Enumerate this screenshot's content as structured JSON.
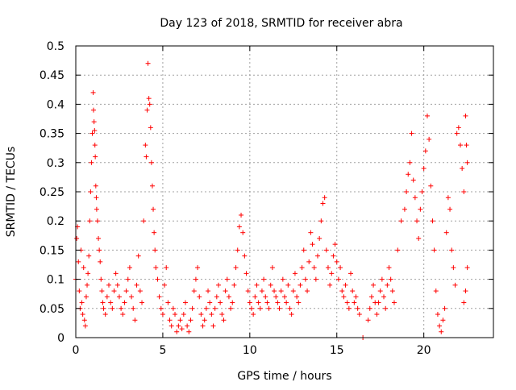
{
  "chart_data": {
    "type": "scatter",
    "title": "Day 123 of 2018, SRMTID for receiver abra",
    "xlabel": "GPS time / hours",
    "ylabel": "SRMTID / TECUs",
    "xlim": [
      0,
      24
    ],
    "ylim": [
      0,
      0.5
    ],
    "xticks": [
      0,
      5,
      10,
      15,
      20
    ],
    "yticks": [
      0,
      0.05,
      0.1,
      0.15,
      0.2,
      0.25,
      0.3,
      0.35,
      0.4,
      0.45,
      0.5
    ],
    "xtick_labels": [
      "0",
      "5",
      "10",
      "15",
      "20"
    ],
    "ytick_labels": [
      "0",
      "0.05",
      "0.1",
      "0.15",
      "0.2",
      "0.25",
      "0.3",
      "0.35",
      "0.4",
      "0.45",
      "0.5"
    ],
    "grid": true,
    "marker": "plus",
    "color": "#ff0000",
    "points": [
      [
        0.0,
        0.1
      ],
      [
        0.05,
        0.17
      ],
      [
        0.1,
        0.19
      ],
      [
        0.15,
        0.13
      ],
      [
        0.2,
        0.08
      ],
      [
        0.25,
        0.05
      ],
      [
        0.3,
        0.15
      ],
      [
        0.35,
        0.06
      ],
      [
        0.4,
        0.04
      ],
      [
        0.45,
        0.12
      ],
      [
        0.5,
        0.03
      ],
      [
        0.55,
        0.02
      ],
      [
        0.6,
        0.07
      ],
      [
        0.65,
        0.09
      ],
      [
        0.7,
        0.11
      ],
      [
        0.75,
        0.14
      ],
      [
        0.8,
        0.2
      ],
      [
        0.85,
        0.25
      ],
      [
        0.9,
        0.3
      ],
      [
        0.95,
        0.35
      ],
      [
        1.0,
        0.42
      ],
      [
        1.02,
        0.39
      ],
      [
        1.05,
        0.37
      ],
      [
        1.08,
        0.355
      ],
      [
        1.1,
        0.33
      ],
      [
        1.12,
        0.31
      ],
      [
        1.15,
        0.26
      ],
      [
        1.18,
        0.24
      ],
      [
        1.2,
        0.22
      ],
      [
        1.25,
        0.2
      ],
      [
        1.3,
        0.17
      ],
      [
        1.35,
        0.15
      ],
      [
        1.4,
        0.13
      ],
      [
        1.45,
        0.1
      ],
      [
        1.5,
        0.08
      ],
      [
        1.55,
        0.06
      ],
      [
        1.6,
        0.05
      ],
      [
        1.7,
        0.04
      ],
      [
        1.8,
        0.07
      ],
      [
        1.9,
        0.09
      ],
      [
        2.0,
        0.06
      ],
      [
        2.1,
        0.05
      ],
      [
        2.2,
        0.08
      ],
      [
        2.3,
        0.11
      ],
      [
        2.4,
        0.09
      ],
      [
        2.5,
        0.07
      ],
      [
        2.6,
        0.05
      ],
      [
        2.7,
        0.04
      ],
      [
        2.8,
        0.06
      ],
      [
        2.9,
        0.08
      ],
      [
        3.0,
        0.1
      ],
      [
        3.1,
        0.12
      ],
      [
        3.2,
        0.07
      ],
      [
        3.3,
        0.05
      ],
      [
        3.4,
        0.03
      ],
      [
        3.5,
        0.09
      ],
      [
        3.6,
        0.14
      ],
      [
        3.7,
        0.08
      ],
      [
        3.8,
        0.06
      ],
      [
        3.9,
        0.2
      ],
      [
        4.0,
        0.33
      ],
      [
        4.05,
        0.31
      ],
      [
        4.1,
        0.39
      ],
      [
        4.15,
        0.47
      ],
      [
        4.2,
        0.41
      ],
      [
        4.25,
        0.4
      ],
      [
        4.3,
        0.36
      ],
      [
        4.35,
        0.3
      ],
      [
        4.4,
        0.26
      ],
      [
        4.45,
        0.22
      ],
      [
        4.5,
        0.18
      ],
      [
        4.55,
        0.15
      ],
      [
        4.6,
        0.12
      ],
      [
        4.7,
        0.1
      ],
      [
        4.8,
        0.07
      ],
      [
        4.9,
        0.05
      ],
      [
        5.0,
        0.04
      ],
      [
        5.1,
        0.09
      ],
      [
        5.2,
        0.12
      ],
      [
        5.3,
        0.06
      ],
      [
        5.4,
        0.03
      ],
      [
        5.5,
        0.02
      ],
      [
        5.6,
        0.05
      ],
      [
        5.7,
        0.04
      ],
      [
        5.8,
        0.01
      ],
      [
        5.9,
        0.02
      ],
      [
        6.0,
        0.03
      ],
      [
        6.1,
        0.015
      ],
      [
        6.2,
        0.04
      ],
      [
        6.3,
        0.06
      ],
      [
        6.4,
        0.02
      ],
      [
        6.5,
        0.01
      ],
      [
        6.6,
        0.03
      ],
      [
        6.7,
        0.05
      ],
      [
        6.8,
        0.08
      ],
      [
        6.9,
        0.1
      ],
      [
        7.0,
        0.12
      ],
      [
        7.1,
        0.07
      ],
      [
        7.2,
        0.04
      ],
      [
        7.3,
        0.02
      ],
      [
        7.4,
        0.03
      ],
      [
        7.5,
        0.05
      ],
      [
        7.6,
        0.08
      ],
      [
        7.7,
        0.06
      ],
      [
        7.8,
        0.04
      ],
      [
        7.9,
        0.02
      ],
      [
        8.0,
        0.05
      ],
      [
        8.1,
        0.07
      ],
      [
        8.2,
        0.09
      ],
      [
        8.3,
        0.06
      ],
      [
        8.4,
        0.04
      ],
      [
        8.5,
        0.03
      ],
      [
        8.6,
        0.08
      ],
      [
        8.7,
        0.1
      ],
      [
        8.8,
        0.07
      ],
      [
        8.9,
        0.05
      ],
      [
        9.0,
        0.06
      ],
      [
        9.1,
        0.09
      ],
      [
        9.2,
        0.12
      ],
      [
        9.3,
        0.15
      ],
      [
        9.4,
        0.19
      ],
      [
        9.5,
        0.21
      ],
      [
        9.6,
        0.18
      ],
      [
        9.7,
        0.14
      ],
      [
        9.8,
        0.11
      ],
      [
        9.9,
        0.08
      ],
      [
        10.0,
        0.06
      ],
      [
        10.1,
        0.05
      ],
      [
        10.2,
        0.04
      ],
      [
        10.3,
        0.07
      ],
      [
        10.4,
        0.09
      ],
      [
        10.5,
        0.06
      ],
      [
        10.6,
        0.05
      ],
      [
        10.7,
        0.08
      ],
      [
        10.8,
        0.1
      ],
      [
        10.9,
        0.07
      ],
      [
        11.0,
        0.06
      ],
      [
        11.1,
        0.05
      ],
      [
        11.2,
        0.09
      ],
      [
        11.3,
        0.12
      ],
      [
        11.4,
        0.08
      ],
      [
        11.5,
        0.07
      ],
      [
        11.6,
        0.06
      ],
      [
        11.7,
        0.05
      ],
      [
        11.8,
        0.08
      ],
      [
        11.9,
        0.1
      ],
      [
        12.0,
        0.07
      ],
      [
        12.1,
        0.06
      ],
      [
        12.2,
        0.09
      ],
      [
        12.3,
        0.05
      ],
      [
        12.4,
        0.04
      ],
      [
        12.5,
        0.08
      ],
      [
        12.6,
        0.11
      ],
      [
        12.7,
        0.07
      ],
      [
        12.8,
        0.06
      ],
      [
        12.9,
        0.09
      ],
      [
        13.0,
        0.12
      ],
      [
        13.1,
        0.15
      ],
      [
        13.2,
        0.1
      ],
      [
        13.3,
        0.08
      ],
      [
        13.4,
        0.13
      ],
      [
        13.5,
        0.18
      ],
      [
        13.6,
        0.16
      ],
      [
        13.7,
        0.12
      ],
      [
        13.8,
        0.1
      ],
      [
        13.9,
        0.14
      ],
      [
        14.0,
        0.17
      ],
      [
        14.1,
        0.2
      ],
      [
        14.2,
        0.23
      ],
      [
        14.3,
        0.24
      ],
      [
        14.4,
        0.15
      ],
      [
        14.5,
        0.12
      ],
      [
        14.6,
        0.09
      ],
      [
        14.7,
        0.11
      ],
      [
        14.8,
        0.14
      ],
      [
        14.9,
        0.16
      ],
      [
        15.0,
        0.13
      ],
      [
        15.1,
        0.1
      ],
      [
        15.2,
        0.12
      ],
      [
        15.3,
        0.08
      ],
      [
        15.4,
        0.07
      ],
      [
        15.5,
        0.09
      ],
      [
        15.6,
        0.06
      ],
      [
        15.7,
        0.05
      ],
      [
        15.8,
        0.11
      ],
      [
        15.9,
        0.08
      ],
      [
        16.0,
        0.06
      ],
      [
        16.1,
        0.07
      ],
      [
        16.2,
        0.05
      ],
      [
        16.3,
        0.04
      ],
      [
        16.5,
        0.0
      ],
      [
        16.8,
        0.03
      ],
      [
        16.9,
        0.05
      ],
      [
        17.0,
        0.07
      ],
      [
        17.1,
        0.09
      ],
      [
        17.2,
        0.06
      ],
      [
        17.3,
        0.04
      ],
      [
        17.4,
        0.06
      ],
      [
        17.5,
        0.08
      ],
      [
        17.6,
        0.1
      ],
      [
        17.7,
        0.07
      ],
      [
        17.8,
        0.05
      ],
      [
        17.9,
        0.09
      ],
      [
        18.0,
        0.12
      ],
      [
        18.1,
        0.1
      ],
      [
        18.2,
        0.08
      ],
      [
        18.3,
        0.06
      ],
      [
        18.5,
        0.15
      ],
      [
        18.7,
        0.2
      ],
      [
        18.9,
        0.22
      ],
      [
        19.0,
        0.25
      ],
      [
        19.1,
        0.28
      ],
      [
        19.2,
        0.3
      ],
      [
        19.3,
        0.35
      ],
      [
        19.4,
        0.27
      ],
      [
        19.5,
        0.24
      ],
      [
        19.6,
        0.2
      ],
      [
        19.7,
        0.17
      ],
      [
        19.8,
        0.22
      ],
      [
        19.9,
        0.25
      ],
      [
        20.0,
        0.29
      ],
      [
        20.1,
        0.32
      ],
      [
        20.2,
        0.38
      ],
      [
        20.3,
        0.34
      ],
      [
        20.4,
        0.26
      ],
      [
        20.5,
        0.2
      ],
      [
        20.6,
        0.15
      ],
      [
        20.7,
        0.08
      ],
      [
        20.8,
        0.04
      ],
      [
        20.9,
        0.02
      ],
      [
        21.0,
        0.01
      ],
      [
        21.1,
        0.03
      ],
      [
        21.2,
        0.05
      ],
      [
        21.3,
        0.18
      ],
      [
        21.4,
        0.24
      ],
      [
        21.5,
        0.22
      ],
      [
        21.6,
        0.15
      ],
      [
        21.7,
        0.12
      ],
      [
        21.8,
        0.09
      ],
      [
        21.9,
        0.35
      ],
      [
        22.0,
        0.36
      ],
      [
        22.1,
        0.33
      ],
      [
        22.2,
        0.29
      ],
      [
        22.3,
        0.25
      ],
      [
        22.4,
        0.38
      ],
      [
        22.45,
        0.33
      ],
      [
        22.5,
        0.3
      ],
      [
        22.5,
        0.12
      ],
      [
        22.4,
        0.08
      ],
      [
        22.3,
        0.06
      ]
    ]
  }
}
